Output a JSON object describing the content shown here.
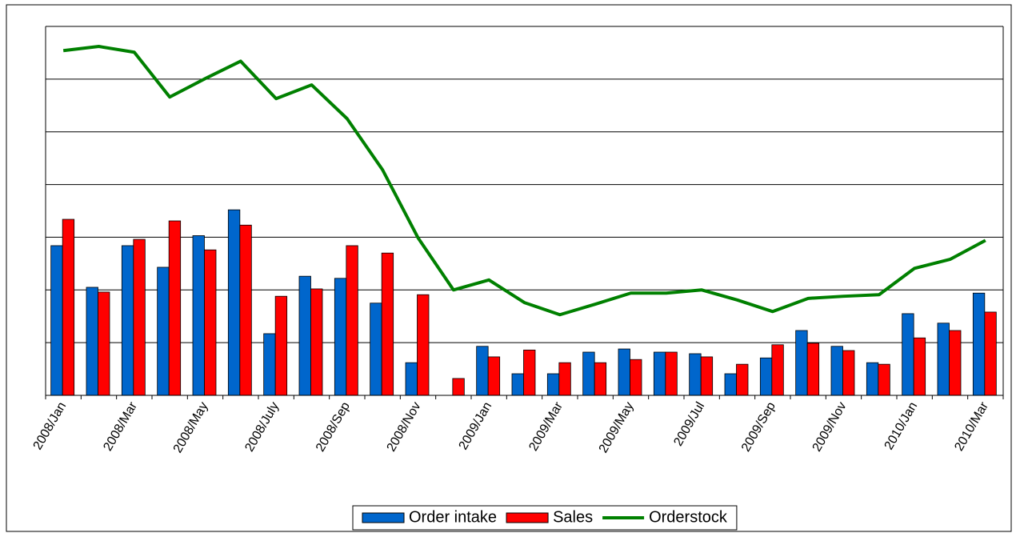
{
  "chart_data": {
    "type": "bar-line",
    "categories": [
      "2008/Jan",
      null,
      "2008/Mar",
      null,
      "2008/May",
      null,
      "2008/July",
      null,
      "2008/Sep",
      null,
      "2008/Nov",
      null,
      "2009/Jan",
      null,
      "2009/Mar",
      null,
      "2009/May",
      null,
      "2009/Jul",
      null,
      "2009/Sep",
      null,
      "2009/Nov",
      null,
      "2010/Jan",
      null,
      "2010/Mar"
    ],
    "series": [
      {
        "name": "Order intake",
        "type": "bar",
        "color": "#0066cc",
        "values": [
          2.84,
          2.05,
          2.84,
          2.43,
          3.03,
          3.52,
          1.17,
          2.26,
          2.22,
          1.75,
          0.62,
          0,
          0.93,
          0.41,
          0.41,
          0.82,
          0.88,
          0.82,
          0.79,
          0.41,
          0.71,
          1.23,
          0.93,
          0.62,
          1.55,
          1.37,
          1.94
        ]
      },
      {
        "name": "Sales",
        "type": "bar",
        "color": "#ff0000",
        "values": [
          3.34,
          1.96,
          2.96,
          3.31,
          2.76,
          3.23,
          1.88,
          2.02,
          2.84,
          2.7,
          1.91,
          0.32,
          0.73,
          0.86,
          0.62,
          0.62,
          0.68,
          0.82,
          0.73,
          0.59,
          0.96,
          0.99,
          0.85,
          0.59,
          1.09,
          1.23,
          1.58
        ]
      },
      {
        "name": "Orderstock",
        "type": "line",
        "color": "#008000",
        "values": [
          6.54,
          6.62,
          6.51,
          5.66,
          6.01,
          6.34,
          5.63,
          5.89,
          5.25,
          4.28,
          2.99,
          2.0,
          2.19,
          1.76,
          1.53,
          1.73,
          1.94,
          1.94,
          2.0,
          1.81,
          1.59,
          1.84,
          1.88,
          1.91,
          2.41,
          2.58,
          2.94
        ]
      }
    ],
    "ylim": [
      0,
      7
    ],
    "yticks": [
      0,
      1,
      2,
      3,
      4,
      5,
      6,
      7
    ],
    "grid": true,
    "legend": "bottom"
  }
}
